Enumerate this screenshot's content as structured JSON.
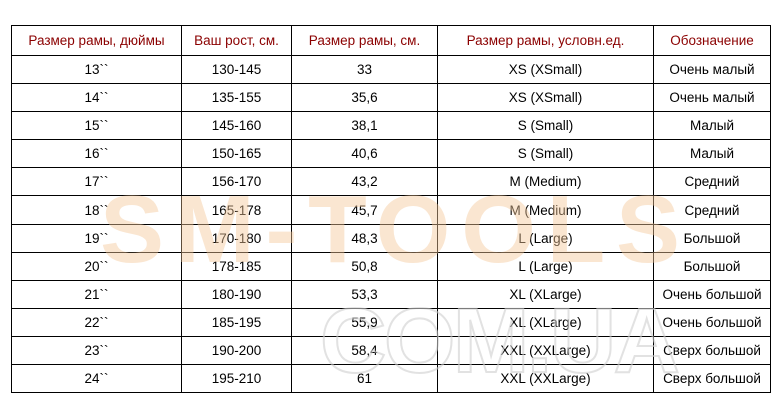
{
  "headers": [
    "Размер рамы, дюймы",
    "Ваш рост, см.",
    "Размер рамы, см.",
    "Размер рамы, условн.ед.",
    "Обозначение"
  ],
  "rows": [
    [
      "13``",
      "130-145",
      "33",
      "XS (XSmall)",
      "Очень малый"
    ],
    [
      "14``",
      "135-155",
      "35,6",
      "XS (XSmall)",
      "Очень малый"
    ],
    [
      "15``",
      "145-160",
      "38,1",
      "S (Small)",
      "Малый"
    ],
    [
      "16``",
      "150-165",
      "40,6",
      "S (Small)",
      "Малый"
    ],
    [
      "17``",
      "156-170",
      "43,2",
      "M (Medium)",
      "Средний"
    ],
    [
      "18``",
      "165-178",
      "45,7",
      "M (Medium)",
      "Средний"
    ],
    [
      "19``",
      "170-180",
      "48,3",
      "L (Large)",
      "Большой"
    ],
    [
      "20``",
      "178-185",
      "50,8",
      "L (Large)",
      "Большой"
    ],
    [
      "21``",
      "180-190",
      "53,3",
      "XL (XLarge)",
      "Очень большой"
    ],
    [
      "22``",
      "185-195",
      "55,9",
      "XL (XLarge)",
      "Очень большой"
    ],
    [
      "23``",
      "190-200",
      "58,4",
      "XXL (XXLarge)",
      "Сверх большой"
    ],
    [
      "24``",
      "195-210",
      "61",
      "XXL (XXLarge)",
      "Сверх большой"
    ]
  ],
  "watermark": {
    "line1": "SM-TOOLS",
    "line2": "COM.UA",
    "color1": "#f5c89a",
    "color2": "#d8d8d8"
  },
  "colors": {
    "header_text": "#8b0000",
    "border": "#000000"
  }
}
